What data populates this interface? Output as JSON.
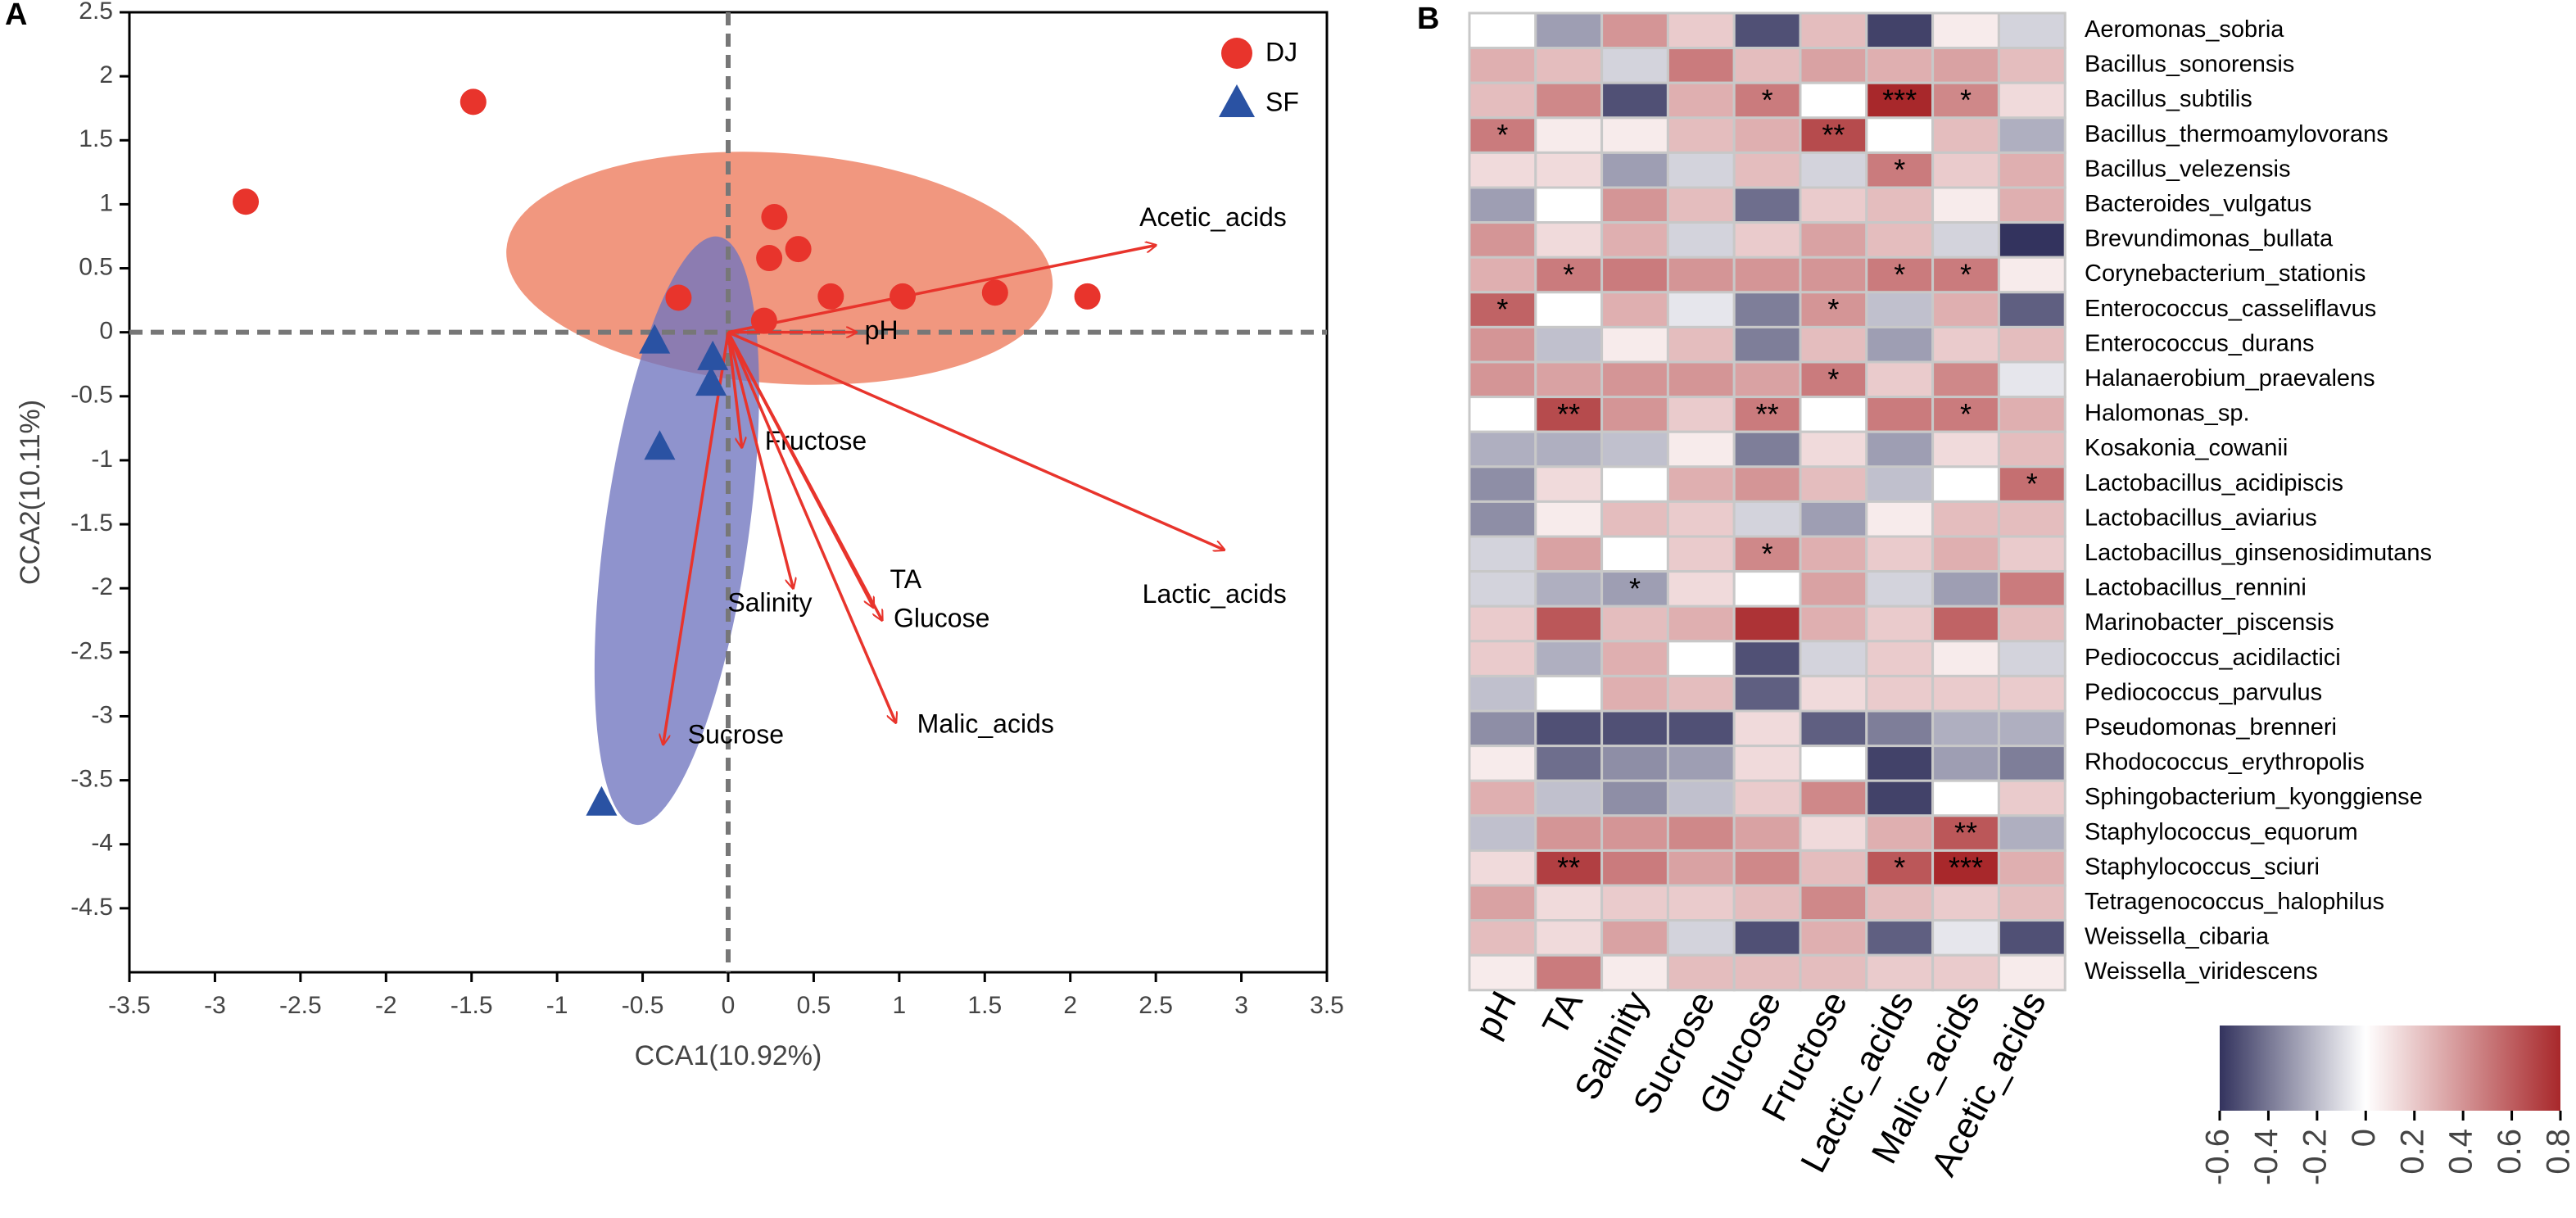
{
  "colors": {
    "dj": "#e8342c",
    "sf": "#2a52a3",
    "dj_ellipse": "#ef8568",
    "sf_ellipse": "#6f75bf",
    "arrow": "#e8342c",
    "heat_low": "#33335e",
    "heat_mid": "#ffffff",
    "heat_high": "#a8282b",
    "grid_cell_border": "#c8c8c8"
  },
  "panels": {
    "a_label": "A",
    "b_label": "B"
  },
  "chart_data": [
    {
      "type": "scatter",
      "panel": "A",
      "xlabel": "CCA1(10.92%)",
      "ylabel": "CCA2(10.11%)",
      "xlim": [
        -3.5,
        3.5
      ],
      "ylim": [
        -5,
        2.5
      ],
      "xticks": [
        -3.5,
        -3,
        -2.5,
        -2,
        -1.5,
        -1,
        -0.5,
        0,
        0.5,
        1,
        1.5,
        2,
        2.5,
        3,
        3.5
      ],
      "xtick_labels": [
        "-3.5",
        "-3",
        "-2.5",
        "-2",
        "-1.5",
        "-1",
        "-0.5",
        "0",
        "0.5",
        "1",
        "1.5",
        "2",
        "2.5",
        "3",
        "3.5"
      ],
      "yticks": [
        -4.5,
        -4,
        -3.5,
        -3,
        -2.5,
        -2,
        -1.5,
        -1,
        -0.5,
        0,
        0.5,
        1,
        1.5,
        2,
        2.5
      ],
      "ytick_labels": [
        "-4.5",
        "-4",
        "-3.5",
        "-3",
        "-2.5",
        "-2",
        "-1.5",
        "-1",
        "-0.5",
        "0",
        "0.5",
        "1",
        "1.5",
        "2",
        "2.5"
      ],
      "legend": {
        "position": "top-right",
        "entries": [
          "DJ",
          "SF"
        ]
      },
      "series": [
        {
          "name": "DJ",
          "marker": "circle",
          "points": [
            [
              -2.82,
              1.02
            ],
            [
              -1.49,
              1.8
            ],
            [
              -0.29,
              0.27
            ],
            [
              0.27,
              0.9
            ],
            [
              0.24,
              0.58
            ],
            [
              0.41,
              0.65
            ],
            [
              0.21,
              0.09
            ],
            [
              0.6,
              0.28
            ],
            [
              1.02,
              0.28
            ],
            [
              1.56,
              0.31
            ],
            [
              2.1,
              0.28
            ]
          ]
        },
        {
          "name": "SF",
          "marker": "triangle",
          "points": [
            [
              -0.43,
              -0.07
            ],
            [
              -0.09,
              -0.2
            ],
            [
              -0.1,
              -0.4
            ],
            [
              -0.4,
              -0.9
            ],
            [
              -0.74,
              -3.68
            ]
          ]
        }
      ],
      "ellipses": [
        {
          "group": "DJ",
          "center": [
            0.3,
            0.5
          ],
          "rx": 1.6,
          "ry": 0.9,
          "angle_deg": 4
        },
        {
          "group": "SF",
          "center": [
            -0.3,
            -1.55
          ],
          "rx": 0.42,
          "ry": 2.32,
          "angle_deg": 8
        }
      ],
      "vectors": [
        {
          "name": "Acetic_acids",
          "end": [
            2.5,
            0.68
          ],
          "label": "Acetic_acids"
        },
        {
          "name": "pH",
          "end": [
            0.75,
            0.0
          ],
          "label": "pH"
        },
        {
          "name": "Fructose",
          "end": [
            0.08,
            -0.9
          ],
          "label": "Fructose"
        },
        {
          "name": "Lactic_acids",
          "end": [
            2.9,
            -1.7
          ],
          "label": "Lactic_acids"
        },
        {
          "name": "TA",
          "end": [
            0.85,
            -2.15
          ],
          "label": "TA"
        },
        {
          "name": "Glucose",
          "end": [
            0.9,
            -2.25
          ],
          "label": "Glucose"
        },
        {
          "name": "Salinity",
          "end": [
            0.38,
            -2.0
          ],
          "label": "Salinity"
        },
        {
          "name": "Malic_acids",
          "end": [
            0.98,
            -3.05
          ],
          "label": "Malic_acids"
        },
        {
          "name": "Sucrose",
          "end": [
            -0.38,
            -3.22
          ],
          "label": "Sucrose"
        }
      ],
      "reference_lines": {
        "x": 0,
        "y": 0,
        "style": "dashed"
      }
    },
    {
      "type": "heatmap",
      "panel": "B",
      "columns": [
        "pH",
        "TA",
        "Salinity",
        "Sucrose",
        "Glucose",
        "Fructose",
        "Lactic_acids",
        "Malic_acids",
        "Acetic_acids"
      ],
      "rows": [
        "Aeromonas_sobria",
        "Bacillus_sonorensis",
        "Bacillus_subtilis",
        "Bacillus_thermoamylovorans",
        "Bacillus_velezensis",
        "Bacteroides_vulgatus",
        "Brevundimonas_bullata",
        "Corynebacterium_stationis",
        "Enterococcus_casseliflavus",
        "Enterococcus_durans",
        "Halanaerobium_praevalens",
        "Halomonas_sp.",
        "Kosakonia_cowanii",
        "Lactobacillus_acidipiscis",
        "Lactobacillus_aviarius",
        "Lactobacillus_ginsenosidimutans",
        "Lactobacillus_rennini",
        "Marinobacter_piscensis",
        "Pediococcus_acidilactici",
        "Pediococcus_parvulus",
        "Pseudomonas_brenneri",
        "Rhodococcus_erythropolis",
        "Sphingobacterium_kyonggiense",
        "Staphylococcus_equorum",
        "Staphylococcus_sciuri",
        "Tetragenococcus_halophilus",
        "Weissella_cibaria",
        "Weissella_viridescens"
      ],
      "values": [
        [
          0.0,
          -0.25,
          0.35,
          0.15,
          -0.5,
          0.2,
          -0.55,
          0.05,
          -0.1
        ],
        [
          0.25,
          0.2,
          -0.1,
          0.45,
          0.2,
          0.3,
          0.25,
          0.3,
          0.2
        ],
        [
          0.2,
          0.4,
          -0.5,
          0.25,
          0.45,
          0.0,
          0.8,
          0.4,
          0.1
        ],
        [
          0.45,
          0.05,
          0.05,
          0.2,
          0.25,
          0.65,
          0.0,
          0.2,
          -0.2
        ],
        [
          0.1,
          0.1,
          -0.25,
          -0.1,
          0.2,
          -0.1,
          0.45,
          0.15,
          0.25
        ],
        [
          -0.25,
          0.0,
          0.35,
          0.2,
          -0.4,
          0.15,
          0.2,
          0.05,
          0.25
        ],
        [
          0.35,
          0.1,
          0.25,
          -0.1,
          0.15,
          0.3,
          0.2,
          -0.1,
          -0.6
        ],
        [
          0.25,
          0.45,
          0.45,
          0.35,
          0.35,
          0.35,
          0.45,
          0.45,
          0.05
        ],
        [
          0.55,
          0.0,
          0.25,
          -0.05,
          -0.35,
          0.35,
          -0.15,
          0.25,
          -0.45
        ],
        [
          0.35,
          -0.15,
          0.05,
          0.2,
          -0.35,
          0.2,
          -0.25,
          0.15,
          0.2
        ],
        [
          0.35,
          0.3,
          0.35,
          0.35,
          0.3,
          0.45,
          0.15,
          0.4,
          -0.05
        ],
        [
          0.0,
          0.65,
          0.35,
          0.15,
          0.45,
          0.0,
          0.45,
          0.45,
          0.25
        ],
        [
          -0.2,
          -0.2,
          -0.15,
          0.05,
          -0.35,
          0.1,
          -0.25,
          0.1,
          0.2
        ],
        [
          -0.3,
          0.1,
          0.0,
          0.25,
          0.35,
          0.2,
          -0.15,
          0.0,
          0.5
        ],
        [
          -0.3,
          0.05,
          0.2,
          0.15,
          -0.1,
          -0.25,
          0.05,
          0.2,
          0.2
        ],
        [
          -0.1,
          0.3,
          0.0,
          0.15,
          0.4,
          0.25,
          0.15,
          0.25,
          0.15
        ],
        [
          -0.1,
          -0.2,
          -0.25,
          0.1,
          0.0,
          0.3,
          -0.1,
          -0.25,
          0.45
        ],
        [
          0.15,
          0.6,
          0.2,
          0.25,
          0.75,
          0.25,
          0.15,
          0.55,
          0.2
        ],
        [
          0.15,
          -0.2,
          0.25,
          0.0,
          -0.5,
          -0.1,
          0.15,
          0.05,
          -0.1
        ],
        [
          -0.15,
          0.0,
          0.25,
          0.2,
          -0.45,
          0.1,
          0.15,
          0.15,
          0.15
        ],
        [
          -0.3,
          -0.5,
          -0.5,
          -0.5,
          0.1,
          -0.45,
          -0.35,
          -0.2,
          -0.2
        ],
        [
          0.05,
          -0.4,
          -0.3,
          -0.25,
          0.1,
          0.0,
          -0.55,
          -0.25,
          -0.35
        ],
        [
          0.25,
          -0.15,
          -0.3,
          -0.15,
          0.15,
          0.4,
          -0.55,
          0.0,
          0.15
        ],
        [
          -0.15,
          0.35,
          0.35,
          0.4,
          0.3,
          0.1,
          0.25,
          0.6,
          -0.2
        ],
        [
          0.1,
          0.7,
          0.45,
          0.3,
          0.4,
          0.2,
          0.6,
          0.8,
          0.25
        ],
        [
          0.3,
          0.1,
          0.15,
          0.15,
          0.2,
          0.4,
          0.2,
          0.15,
          0.2
        ],
        [
          0.2,
          0.1,
          0.3,
          -0.1,
          -0.5,
          0.25,
          -0.45,
          -0.05,
          -0.5
        ],
        [
          0.05,
          0.45,
          0.05,
          0.2,
          0.2,
          0.2,
          0.15,
          0.15,
          0.05
        ]
      ],
      "significance": [
        {
          "row": 2,
          "col": 4,
          "mark": "*"
        },
        {
          "row": 2,
          "col": 6,
          "mark": "***"
        },
        {
          "row": 2,
          "col": 7,
          "mark": "*"
        },
        {
          "row": 3,
          "col": 0,
          "mark": "*"
        },
        {
          "row": 3,
          "col": 5,
          "mark": "**"
        },
        {
          "row": 4,
          "col": 6,
          "mark": "*"
        },
        {
          "row": 7,
          "col": 1,
          "mark": "*"
        },
        {
          "row": 7,
          "col": 6,
          "mark": "*"
        },
        {
          "row": 7,
          "col": 7,
          "mark": "*"
        },
        {
          "row": 8,
          "col": 0,
          "mark": "*"
        },
        {
          "row": 8,
          "col": 5,
          "mark": "*"
        },
        {
          "row": 10,
          "col": 5,
          "mark": "*"
        },
        {
          "row": 11,
          "col": 1,
          "mark": "**"
        },
        {
          "row": 11,
          "col": 4,
          "mark": "**"
        },
        {
          "row": 11,
          "col": 7,
          "mark": "*"
        },
        {
          "row": 13,
          "col": 8,
          "mark": "*"
        },
        {
          "row": 15,
          "col": 4,
          "mark": "*"
        },
        {
          "row": 16,
          "col": 2,
          "mark": "*"
        },
        {
          "row": 23,
          "col": 7,
          "mark": "**"
        },
        {
          "row": 24,
          "col": 1,
          "mark": "**"
        },
        {
          "row": 24,
          "col": 6,
          "mark": "*"
        },
        {
          "row": 24,
          "col": 7,
          "mark": "***"
        }
      ],
      "colorbar": {
        "min": -0.6,
        "max": 0.8,
        "ticks": [
          -0.6,
          -0.4,
          -0.2,
          0,
          0.2,
          0.4,
          0.6,
          0.8
        ],
        "tick_labels": [
          "-0.6",
          "-0.4",
          "-0.2",
          "0",
          "0.2",
          "0.4",
          "0.6",
          "0.8"
        ]
      }
    }
  ]
}
